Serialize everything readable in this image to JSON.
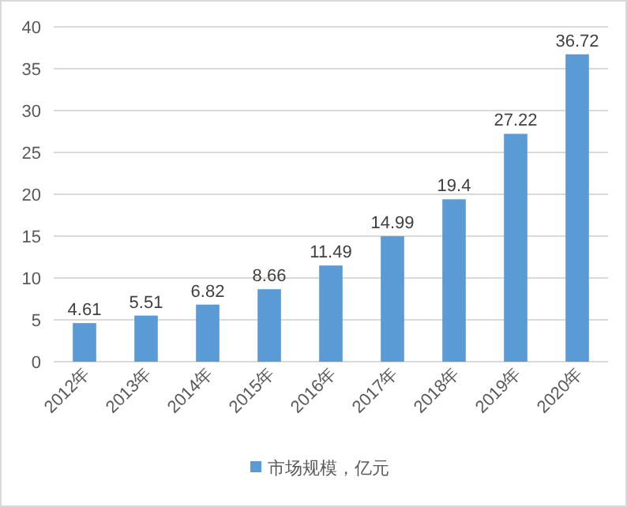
{
  "chart_data": {
    "type": "bar",
    "categories": [
      "2012年",
      "2013年",
      "2014年",
      "2015年",
      "2016年",
      "2017年",
      "2018年",
      "2019年",
      "2020年"
    ],
    "series": [
      {
        "name": "市场规模，亿元",
        "color": "#5b9bd5",
        "values": [
          4.61,
          5.51,
          6.82,
          8.66,
          11.49,
          14.99,
          19.4,
          27.22,
          36.72
        ]
      }
    ],
    "ylim": [
      0,
      40
    ],
    "yticks": [
      0,
      5,
      10,
      15,
      20,
      25,
      30,
      35,
      40
    ],
    "grid": "y",
    "legend": "bottom",
    "data_labels": true
  }
}
